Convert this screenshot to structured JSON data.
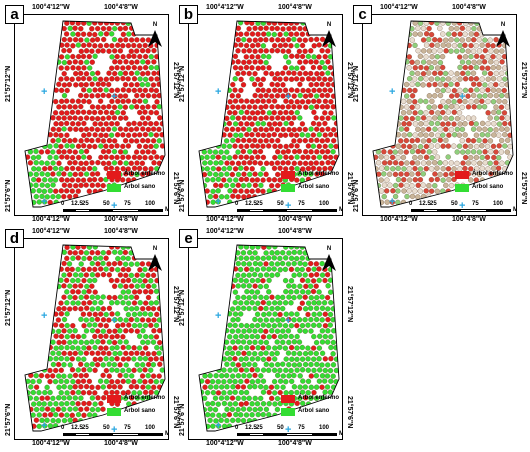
{
  "panels": [
    {
      "label": "a",
      "mode": "mostly_diseased"
    },
    {
      "label": "b",
      "mode": "mostly_diseased"
    },
    {
      "label": "c",
      "mode": "faded_mixed"
    },
    {
      "label": "d",
      "mode": "mixed"
    },
    {
      "label": "e",
      "mode": "mostly_healthy"
    }
  ],
  "coords": {
    "lon_left": "100°4'12\"W",
    "lon_right": "100°4'8\"W",
    "lat_top": "21°57'12\"N",
    "lat_bottom": "21°57'6\"N"
  },
  "north_label": "N",
  "legend": {
    "diseased_label": "Árbol enfermo",
    "healthy_label": "Árbol sano",
    "diseased_color": "#e31a1c",
    "healthy_color": "#33dd33"
  },
  "scale": {
    "ticks": [
      "0",
      "12.5",
      "25",
      "50",
      "75",
      "100"
    ],
    "unit": "M"
  },
  "icons": {
    "north_arrow": "north-arrow-icon",
    "grid_cross": "plus-cross-icon"
  }
}
